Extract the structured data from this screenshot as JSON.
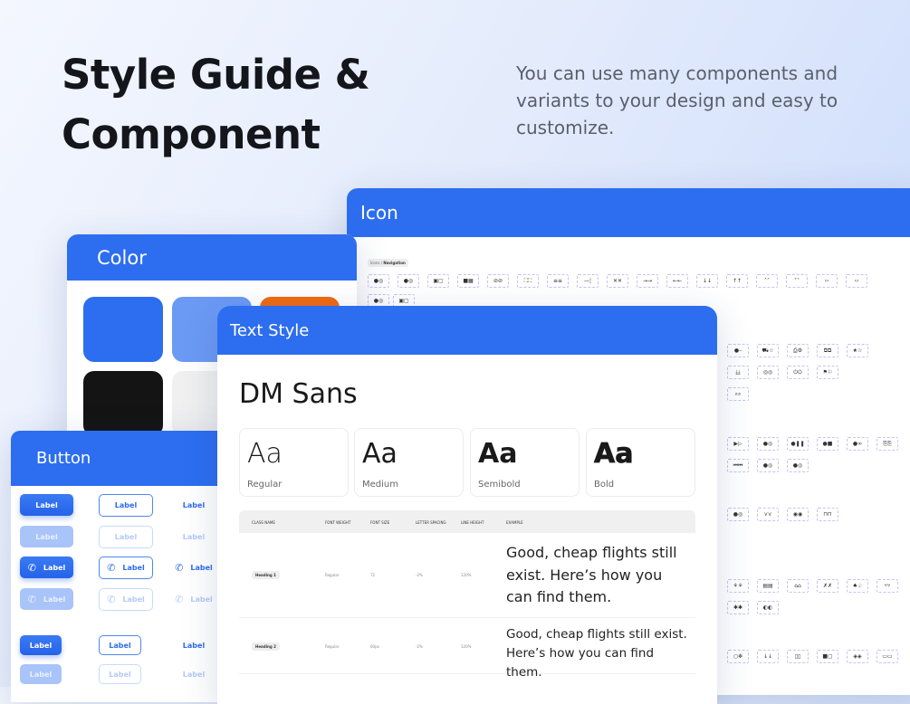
{
  "hero": {
    "title_line1": "Style Guide &",
    "title_line2": "Component",
    "subtitle": "You can use many components and variants to your design and easy to customize."
  },
  "icon_card": {
    "title": "Icon",
    "category_prefix": "Icons /",
    "category": "Navigation"
  },
  "color_card": {
    "title": "Color",
    "swatches": [
      "#2D6EF0",
      "#6B9AF5",
      "#F06A10",
      "#141414",
      "#F0F0F0"
    ]
  },
  "text_style_card": {
    "title": "Text Style",
    "font_name": "DM Sans",
    "weights": [
      {
        "sample": "Aa",
        "label": "Regular"
      },
      {
        "sample": "Aa",
        "label": "Medium"
      },
      {
        "sample": "Aa",
        "label": "Semibold"
      },
      {
        "sample": "Aa",
        "label": "Bold"
      }
    ],
    "table_headers": [
      "CLASS NAME",
      "FONT WEIGHT",
      "FONT SIZE",
      "LETTER SPACING",
      "LINE HEIGHT",
      "EXAMPLE"
    ],
    "rows": [
      {
        "class_name": "Heading 1",
        "weight": "Regular",
        "size": "72",
        "spacing": "-2%",
        "line_height": "120%",
        "example": "Good, cheap flights still exist. Here’s how you can find them."
      },
      {
        "class_name": "Heading 2",
        "weight": "Regular",
        "size": "60px",
        "spacing": "-2%",
        "line_height": "120%",
        "example": "Good, cheap flights still exist. Here’s how you can find them."
      }
    ]
  },
  "button_card": {
    "title": "Button",
    "label": "Label"
  },
  "colors": {
    "primary": "#2D6EF0"
  }
}
